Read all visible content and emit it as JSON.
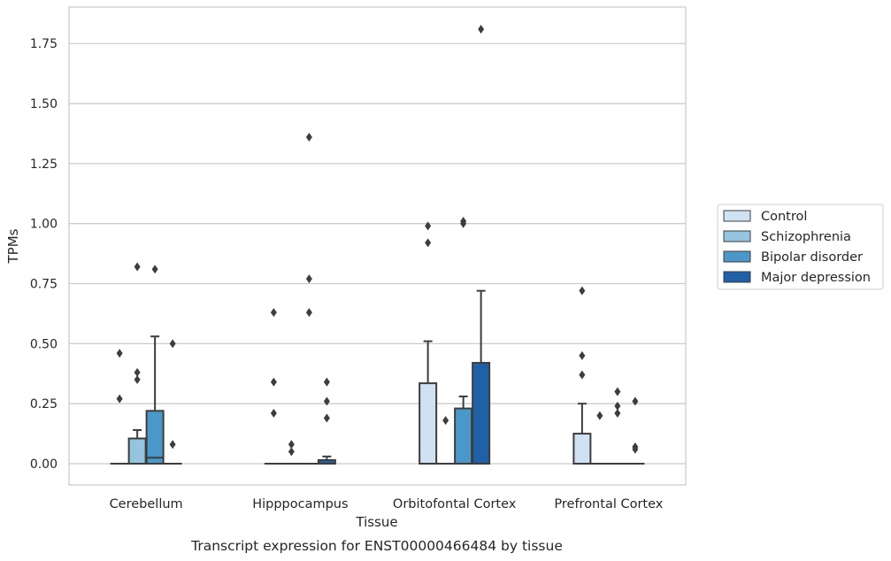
{
  "chart_data": {
    "type": "boxplot",
    "caption": "Transcript expression for ENST00000466484 by tissue",
    "xlabel": "Tissue",
    "ylabel": "TPMs",
    "ylim": [
      -0.09,
      1.9
    ],
    "yticks": [
      0.0,
      0.25,
      0.5,
      0.75,
      1.0,
      1.25,
      1.5,
      1.75
    ],
    "ytick_labels": [
      "0.00",
      "0.25",
      "0.50",
      "0.75",
      "1.00",
      "1.25",
      "1.50",
      "1.75"
    ],
    "grid": "horizontal",
    "legend_position": "right",
    "categories": [
      "Cerebellum",
      "Hipppocampus",
      "Orbitofontal Cortex",
      "Prefrontal Cortex"
    ],
    "series": [
      {
        "name": "Control",
        "color": "#d0e1f2",
        "boxes": [
          {
            "q1": 0,
            "median": 0,
            "q3": 0,
            "whislo": 0,
            "whishi": 0,
            "fliers": [
              0.46,
              0.27
            ]
          },
          {
            "q1": 0,
            "median": 0,
            "q3": 0,
            "whislo": 0,
            "whishi": 0,
            "fliers": [
              0.63,
              0.34,
              0.21
            ]
          },
          {
            "q1": 0,
            "median": 0,
            "q3": 0.335,
            "whislo": 0,
            "whishi": 0.51,
            "fliers": [
              0.99,
              0.92
            ]
          },
          {
            "q1": 0,
            "median": 0,
            "q3": 0.125,
            "whislo": 0,
            "whishi": 0.25,
            "fliers": [
              0.72,
              0.45,
              0.37
            ]
          }
        ]
      },
      {
        "name": "Schizophrenia",
        "color": "#94c4df",
        "boxes": [
          {
            "q1": 0,
            "median": 0,
            "q3": 0.105,
            "whislo": 0,
            "whishi": 0.14,
            "fliers": [
              0.82,
              0.38,
              0.35
            ]
          },
          {
            "q1": 0,
            "median": 0,
            "q3": 0,
            "whislo": 0,
            "whishi": 0,
            "fliers": [
              0.08,
              0.05
            ]
          },
          {
            "q1": 0,
            "median": 0,
            "q3": 0,
            "whislo": 0,
            "whishi": 0,
            "fliers": [
              0.18
            ]
          },
          {
            "q1": 0,
            "median": 0,
            "q3": 0,
            "whislo": 0,
            "whishi": 0,
            "fliers": [
              0.2
            ]
          }
        ]
      },
      {
        "name": "Bipolar disorder",
        "color": "#4a98c9",
        "boxes": [
          {
            "q1": 0,
            "median": 0.025,
            "q3": 0.22,
            "whislo": 0,
            "whishi": 0.53,
            "fliers": [
              0.81
            ]
          },
          {
            "q1": 0,
            "median": 0,
            "q3": 0,
            "whislo": 0,
            "whishi": 0,
            "fliers": [
              1.36,
              0.77,
              0.63
            ]
          },
          {
            "q1": 0,
            "median": 0,
            "q3": 0.23,
            "whislo": 0,
            "whishi": 0.28,
            "fliers": [
              1.0,
              1.01
            ]
          },
          {
            "q1": 0,
            "median": 0,
            "q3": 0,
            "whislo": 0,
            "whishi": 0,
            "fliers": [
              0.3,
              0.24,
              0.21
            ]
          }
        ]
      },
      {
        "name": "Major depression",
        "color": "#2060a7",
        "boxes": [
          {
            "q1": 0,
            "median": 0,
            "q3": 0,
            "whislo": 0,
            "whishi": 0,
            "fliers": [
              0.5,
              0.08
            ]
          },
          {
            "q1": 0,
            "median": 0,
            "q3": 0.015,
            "whislo": 0,
            "whishi": 0.03,
            "fliers": [
              0.34,
              0.26,
              0.19
            ]
          },
          {
            "q1": 0,
            "median": 0,
            "q3": 0.42,
            "whislo": 0,
            "whishi": 0.72,
            "fliers": [
              1.81
            ]
          },
          {
            "q1": 0,
            "median": 0,
            "q3": 0,
            "whislo": 0,
            "whishi": 0,
            "fliers": [
              0.26,
              0.07,
              0.06
            ]
          }
        ]
      }
    ]
  }
}
